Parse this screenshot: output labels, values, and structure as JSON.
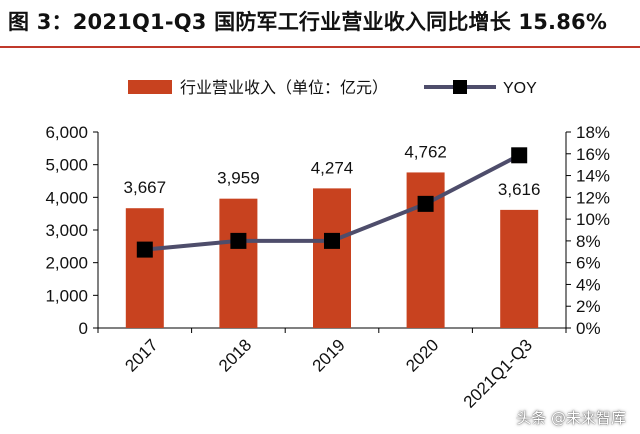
{
  "figure": {
    "title": "图 3：2021Q1-Q3 国防军工行业营业收入同比增长 15.86%"
  },
  "watermark": "头条 @未来智库",
  "colors": {
    "bar": "#c8421f",
    "line": "#4e4d6b",
    "marker": "#000000",
    "title_rule": "#c0392b",
    "text": "#111111"
  },
  "chart_data": {
    "type": "bar",
    "categories": [
      "2017",
      "2018",
      "2019",
      "2020",
      "2021Q1-Q3"
    ],
    "series": [
      {
        "name": "行业营业收入（单位：亿元）",
        "kind": "bar",
        "axis": "left",
        "values": [
          3667,
          3959,
          4274,
          4762,
          3616
        ],
        "labels": [
          "3,667",
          "3,959",
          "4,274",
          "4,762",
          "3,616"
        ]
      },
      {
        "name": "YOY",
        "kind": "line",
        "axis": "right",
        "values": [
          7.2,
          8.0,
          8.0,
          11.4,
          15.86
        ]
      }
    ],
    "y_left": {
      "range": [
        0,
        6000
      ],
      "ticks": [
        0,
        1000,
        2000,
        3000,
        4000,
        5000,
        6000
      ],
      "tick_labels": [
        "0",
        "1,000",
        "2,000",
        "3,000",
        "4,000",
        "5,000",
        "6,000"
      ]
    },
    "y_right": {
      "range": [
        0,
        18
      ],
      "ticks": [
        0,
        2,
        4,
        6,
        8,
        10,
        12,
        14,
        16,
        18
      ],
      "tick_labels": [
        "0%",
        "2%",
        "4%",
        "6%",
        "8%",
        "10%",
        "12%",
        "14%",
        "16%",
        "18%"
      ]
    },
    "legend_position": "top",
    "grid": false
  }
}
